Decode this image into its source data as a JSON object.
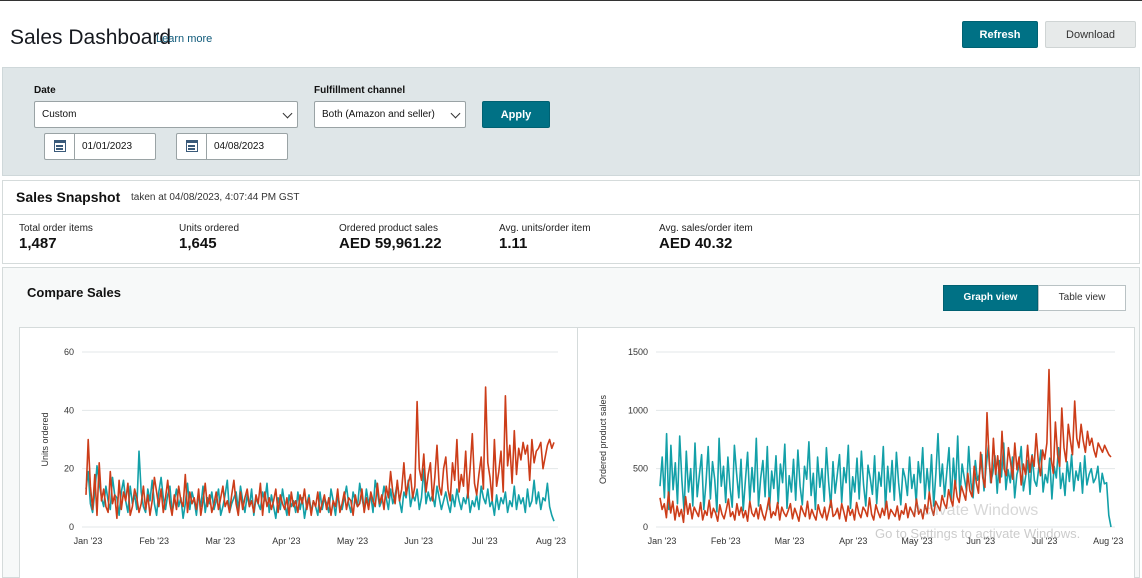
{
  "header": {
    "title": "Sales Dashboard",
    "learn_more": "Learn more",
    "refresh_label": "Refresh",
    "download_label": "Download"
  },
  "filters": {
    "date_label": "Date",
    "date_range_value": "Custom",
    "start_date": "01/01/2023",
    "end_date": "04/08/2023",
    "channel_label": "Fulfillment channel",
    "channel_value": "Both (Amazon and seller)",
    "apply_label": "Apply"
  },
  "snapshot": {
    "title": "Sales Snapshot",
    "taken_at": "taken at 04/08/2023, 4:07:44 PM GST",
    "metrics": [
      {
        "label": "Total order items",
        "value": "1,487"
      },
      {
        "label": "Units ordered",
        "value": "1,645"
      },
      {
        "label": "Ordered product sales",
        "value": "AED 59,961.22"
      },
      {
        "label": "Avg. units/order item",
        "value": "1.11"
      },
      {
        "label": "Avg. sales/order item",
        "value": "AED 40.32"
      }
    ]
  },
  "compare": {
    "title": "Compare Sales",
    "graph_view_label": "Graph view",
    "table_view_label": "Table view"
  },
  "colors": {
    "accent": "#007185",
    "series_current": "#13a0a8",
    "series_compare": "#cc3d19"
  },
  "watermark": {
    "line1": "Activate Windows",
    "line2": "Go to Settings to activate Windows."
  },
  "chart_data": [
    {
      "type": "line",
      "title": "",
      "xlabel": "",
      "ylabel": "Units ordered",
      "x_range": [
        "2023-01-01",
        "2023-08-04"
      ],
      "x_ticks": [
        "Jan '23",
        "Feb '23",
        "Mar '23",
        "Apr '23",
        "May '23",
        "Jun '23",
        "Jul '23",
        "Aug '23"
      ],
      "y_ticks": [
        0,
        20,
        40,
        60
      ],
      "ylim": [
        0,
        60
      ],
      "grid": true,
      "legend": "none",
      "series": [
        {
          "color": "#13a0a8",
          "values": [
            13,
            19,
            8,
            5,
            12,
            21,
            15,
            10,
            7,
            14,
            9,
            6,
            17,
            11,
            10,
            4,
            12,
            16,
            9,
            5,
            14,
            8,
            11,
            6,
            26,
            12,
            7,
            5,
            13,
            9,
            16,
            8,
            4,
            12,
            17,
            10,
            6,
            11,
            14,
            5,
            9,
            13,
            7,
            10,
            3,
            8,
            15,
            6,
            12,
            9,
            4,
            11,
            7,
            14,
            5,
            10,
            8,
            12,
            6,
            9,
            13,
            4,
            7,
            11,
            16,
            5,
            8,
            10,
            12,
            6,
            14,
            9,
            5,
            11,
            7,
            13,
            4,
            10,
            8,
            6,
            12,
            9,
            15,
            5,
            11,
            7,
            3,
            10,
            6,
            13,
            8,
            4,
            11,
            7,
            9,
            5,
            12,
            6,
            10,
            3,
            8,
            11,
            5,
            9,
            7,
            4,
            12,
            6,
            10,
            8,
            5,
            13,
            9,
            4,
            11,
            7,
            6,
            10,
            14,
            8,
            5,
            12,
            9,
            7,
            15,
            10,
            6,
            13,
            8,
            11,
            5,
            16,
            12,
            7,
            9,
            14,
            10,
            6,
            13,
            8,
            11,
            15,
            9,
            5,
            12,
            10,
            16,
            7,
            11,
            9,
            13,
            6,
            10,
            20,
            8,
            12,
            9,
            11,
            7,
            14,
            10,
            6,
            9,
            12,
            8,
            5,
            11,
            7,
            13,
            9,
            6,
            10,
            8,
            12,
            5,
            9,
            7,
            11,
            6,
            14,
            10,
            8,
            13,
            7,
            9,
            4,
            11,
            6,
            10,
            8,
            12,
            5,
            9,
            7,
            14,
            6,
            11,
            8,
            10,
            5,
            13,
            7,
            9,
            16,
            8,
            12,
            6,
            10,
            9,
            15,
            7,
            4,
            2
          ]
        },
        {
          "color": "#cc3d19",
          "values": [
            11,
            30,
            14,
            6,
            18,
            4,
            22,
            9,
            13,
            7,
            5,
            19,
            8,
            11,
            3,
            16,
            6,
            12,
            9,
            15,
            4,
            7,
            13,
            10,
            5,
            8,
            14,
            6,
            11,
            4,
            9,
            17,
            12,
            7,
            13,
            5,
            10,
            16,
            8,
            4,
            11,
            6,
            14,
            9,
            7,
            18,
            5,
            12,
            8,
            10,
            6,
            13,
            4,
            9,
            15,
            7,
            11,
            5,
            8,
            12,
            6,
            10,
            14,
            7,
            9,
            5,
            11,
            16,
            8,
            4,
            12,
            6,
            10,
            13,
            7,
            9,
            5,
            11,
            8,
            15,
            4,
            12,
            7,
            10,
            6,
            9,
            13,
            5,
            11,
            8,
            6,
            10,
            4,
            12,
            7,
            9,
            5,
            11,
            8,
            13,
            6,
            10,
            4,
            9,
            7,
            12,
            5,
            8,
            11,
            6,
            10,
            4,
            9,
            7,
            13,
            5,
            8,
            12,
            6,
            10,
            9,
            4,
            11,
            7,
            8,
            13,
            5,
            10,
            6,
            12,
            9,
            7,
            15,
            8,
            11,
            6,
            14,
            10,
            19,
            12,
            8,
            16,
            9,
            13,
            22,
            11,
            15,
            18,
            10,
            14,
            43,
            20,
            16,
            25,
            12,
            18,
            22,
            9,
            17,
            28,
            14,
            11,
            20,
            24,
            13,
            9,
            22,
            16,
            30,
            12,
            18,
            14,
            26,
            10,
            20,
            32,
            15,
            11,
            18,
            24,
            13,
            48,
            22,
            17,
            9,
            30,
            14,
            19,
            26,
            12,
            45,
            21,
            28,
            15,
            33,
            18,
            27,
            23,
            29,
            25,
            28,
            16,
            30,
            22,
            26,
            27,
            29,
            20,
            24,
            28,
            30,
            27,
            29
          ]
        }
      ]
    },
    {
      "type": "line",
      "title": "",
      "xlabel": "",
      "ylabel": "Ordered product sales",
      "x_range": [
        "2023-01-01",
        "2023-08-04"
      ],
      "x_ticks": [
        "Jan '23",
        "Feb '23",
        "Mar '23",
        "Apr '23",
        "May '23",
        "Jun '23",
        "Jul '23",
        "Aug '23"
      ],
      "y_ticks": [
        0,
        500,
        1000,
        1500
      ],
      "ylim": [
        0,
        1500
      ],
      "grid": true,
      "legend": "none",
      "series": [
        {
          "color": "#13a0a8",
          "values": [
            350,
            600,
            250,
            800,
            150,
            700,
            320,
            550,
            200,
            780,
            400,
            130,
            650,
            300,
            500,
            180,
            720,
            260,
            450,
            620,
            150,
            380,
            690,
            240,
            560,
            410,
            130,
            760,
            350,
            520,
            210,
            600,
            330,
            170,
            700,
            460,
            250,
            580,
            140,
            400,
            640,
            220,
            510,
            300,
            760,
            180,
            420,
            570,
            260,
            690,
            150,
            480,
            330,
            610,
            200,
            540,
            380,
            710,
            160,
            440,
            300,
            580,
            230,
            660,
            350,
            190,
            520,
            410,
            730,
            270,
            460,
            150,
            600,
            340,
            500,
            220,
            680,
            390,
            170,
            560,
            290,
            450,
            620,
            210,
            510,
            380,
            700,
            160,
            430,
            300,
            590,
            240,
            650,
            360,
            180,
            530,
            420,
            280,
            610,
            200,
            470,
            350,
            690,
            150,
            520,
            300,
            570,
            230,
            640,
            380,
            190,
            500,
            420,
            270,
            600,
            330,
            450,
            210,
            560,
            380,
            680,
            240,
            500,
            300,
            620,
            180,
            460,
            800,
            350,
            540,
            260,
            470,
            680,
            220,
            590,
            330,
            780,
            260,
            540,
            420,
            310,
            690,
            380,
            250,
            570,
            400,
            460,
            620,
            310,
            520,
            700,
            380,
            460,
            610,
            290,
            570,
            430,
            720,
            320,
            490,
            380,
            600,
            250,
            450,
            520,
            690,
            310,
            430,
            570,
            280,
            620,
            400,
            350,
            510,
            660,
            300,
            450,
            380,
            590,
            240,
            520,
            420,
            680,
            330,
            460,
            270,
            560,
            390,
            620,
            310,
            480,
            400,
            550,
            290,
            610,
            360,
            450,
            500,
            380,
            420,
            520,
            300,
            460,
            370,
            380,
            100,
            0
          ]
        },
        {
          "color": "#cc3d19",
          "values": [
            250,
            150,
            200,
            80,
            300,
            120,
            220,
            60,
            180,
            90,
            150,
            40,
            260,
            110,
            200,
            70,
            170,
            130,
            90,
            210,
            60,
            140,
            100,
            230,
            80,
            160,
            120,
            50,
            190,
            110,
            70,
            150,
            240,
            90,
            130,
            60,
            200,
            100,
            170,
            80,
            140,
            50,
            220,
            120,
            90,
            160,
            70,
            190,
            110,
            60,
            150,
            250,
            80,
            130,
            100,
            210,
            60,
            170,
            120,
            90,
            140,
            200,
            70,
            160,
            110,
            50,
            180,
            130,
            90,
            220,
            70,
            150,
            100,
            60,
            190,
            120,
            80,
            170,
            60,
            140,
            230,
            90,
            110,
            160,
            70,
            200,
            130,
            50,
            180,
            100,
            150,
            60,
            210,
            120,
            80,
            170,
            140,
            90,
            250,
            110,
            60,
            190,
            130,
            80,
            160,
            100,
            220,
            70,
            150,
            120,
            90,
            180,
            60,
            140,
            110,
            200,
            80,
            170,
            130,
            90,
            240,
            110,
            150,
            70,
            190,
            120,
            300,
            160,
            100,
            220,
            180,
            140,
            270,
            200,
            160,
            320,
            240,
            180,
            400,
            260,
            210,
            350,
            290,
            230,
            460,
            310,
            260,
            520,
            380,
            290,
            640,
            420,
            340,
            980,
            560,
            380,
            760,
            450,
            610,
            380,
            820,
            500,
            440,
            680,
            560,
            410,
            720,
            490,
            600,
            360,
            540,
            450,
            700,
            470,
            610,
            520,
            800,
            560,
            440,
            660,
            580,
            720,
            1350,
            580,
            460,
            900,
            620,
            520,
            1020,
            680,
            560,
            880,
            740,
            620,
            1080,
            760,
            680,
            880,
            740,
            640,
            820,
            700,
            760,
            660,
            600,
            720,
            680,
            640,
            700,
            660,
            620,
            600
          ]
        }
      ]
    }
  ]
}
